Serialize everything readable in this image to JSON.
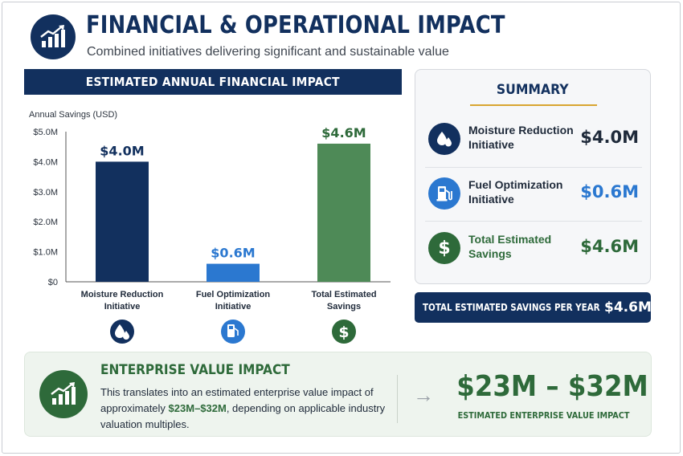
{
  "header": {
    "title": "FINANCIAL & OPERATIONAL IMPACT",
    "subtitle": "Combined initiatives delivering significant and sustainable value",
    "logo_icon": "chart-growth-icon"
  },
  "chart_panel": {
    "banner": "ESTIMATED ANNUAL FINANCIAL IMPACT"
  },
  "chart_data": {
    "type": "bar",
    "title": "",
    "ylabel": "Annual Savings (USD)",
    "categories": [
      "Moisture Reduction Initiative",
      "Fuel Optimization Initiative",
      "Total Estimated Savings"
    ],
    "category_lines": [
      [
        "Moisture Reduction",
        "Initiative"
      ],
      [
        "Fuel Optimization",
        "Initiative"
      ],
      [
        "Total Estimated",
        "Savings"
      ]
    ],
    "values": [
      4.0,
      0.6,
      4.6
    ],
    "value_labels": [
      "$4.0M",
      "$0.6M",
      "$4.6M"
    ],
    "unit": "$M",
    "ylim": [
      0,
      5
    ],
    "yticks": [
      0,
      1,
      2,
      3,
      4,
      5
    ],
    "ytick_labels": [
      "$0",
      "$1.0M",
      "$2.0M",
      "$3.0M",
      "$4.0M",
      "$5.0M"
    ],
    "grid": false,
    "colors": [
      "#12305e",
      "#2b78d0",
      "#4e8a57"
    ],
    "label_colors": [
      "#12305e",
      "#2b78d0",
      "#2e6a3a"
    ],
    "icons": [
      "water-drops-icon",
      "fuel-pump-icon",
      "dollar-icon"
    ]
  },
  "summary": {
    "title": "SUMMARY",
    "items": [
      {
        "label": "Moisture Reduction Initiative",
        "lines": [
          "Moisture Reduction",
          "Initiative"
        ],
        "value": "$4.0M",
        "icon": "water-drops-icon",
        "icon_color": "#12305e",
        "value_color": "#1f2a3a",
        "label_color": "#1f2a3a"
      },
      {
        "label": "Fuel Optimization Initiative",
        "lines": [
          "Fuel Optimization",
          "Initiative"
        ],
        "value": "$0.6M",
        "icon": "fuel-pump-icon",
        "icon_color": "#2b78d0",
        "value_color": "#2b78d0",
        "label_color": "#1f2a3a"
      },
      {
        "label": "Total Estimated Savings",
        "lines": [
          "Total Estimated",
          "Savings"
        ],
        "value": "$4.6M",
        "icon": "dollar-icon",
        "icon_color": "#2e6a3a",
        "value_color": "#2e6a3a",
        "label_color": "#2e6a3a"
      }
    ]
  },
  "total_bar": {
    "label": "TOTAL ESTIMATED SAVINGS PER YEAR",
    "value": "$4.6M"
  },
  "enterprise": {
    "title": "ENTERPRISE VALUE IMPACT",
    "text_before": "This translates into an estimated enterprise value impact of approximately ",
    "text_highlight": "$23M–$32M",
    "text_after": ", depending on applicable industry valuation multiples.",
    "arrow": "→",
    "big_value": "$23M – $32M",
    "caption": "ESTIMATED ENTERPRISE VALUE IMPACT",
    "icon": "chart-growth-icon"
  },
  "colors": {
    "navy": "#12305e",
    "blue": "#2b78d0",
    "green": "#2e6a3a",
    "gold": "#d8a531"
  }
}
